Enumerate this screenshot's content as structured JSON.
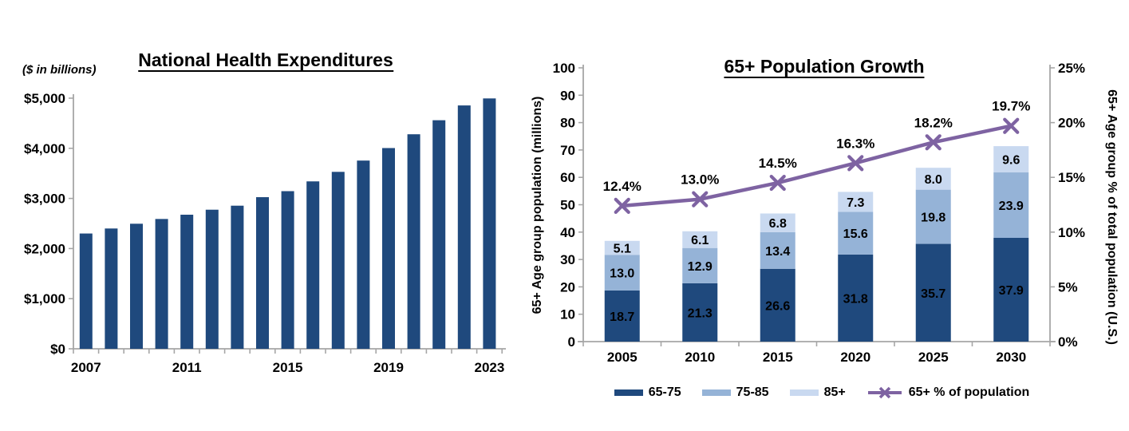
{
  "chart_data": [
    {
      "id": "national-health-expenditures",
      "type": "bar",
      "title": "National Health Expenditures",
      "units_note": "($ in billions)",
      "categories": [
        "2007",
        "2008",
        "2009",
        "2010",
        "2011",
        "2012",
        "2013",
        "2014",
        "2015",
        "2016",
        "2017",
        "2018",
        "2019",
        "2020",
        "2021",
        "2022",
        "2023"
      ],
      "values": [
        2300,
        2400,
        2495,
        2590,
        2675,
        2775,
        2855,
        3025,
        3145,
        3340,
        3530,
        3755,
        4005,
        4280,
        4560,
        4855,
        4995
      ],
      "x_axis_shown_labels": [
        {
          "i": 0,
          "t": "2007"
        },
        {
          "i": 4,
          "t": "2011"
        },
        {
          "i": 8,
          "t": "2015"
        },
        {
          "i": 12,
          "t": "2019"
        },
        {
          "i": 16,
          "t": "2023"
        }
      ],
      "y_axis": {
        "min": 0,
        "max": 5000,
        "step": 1000,
        "tick_labels": [
          "$0",
          "$1,000",
          "$2,000",
          "$3,000",
          "$4,000",
          "$5,000"
        ]
      },
      "bar_color": "#1F497D",
      "axis_color": "#A6A6A6",
      "grid": false,
      "legend": "none"
    },
    {
      "id": "population-growth-65plus",
      "type": "stacked-bar-line-combo",
      "title": "65+ Population Growth",
      "categories": [
        "2005",
        "2010",
        "2015",
        "2020",
        "2025",
        "2030"
      ],
      "series": [
        {
          "name": "65-75",
          "color": "#1F497D",
          "label_color": "#FFFFFF",
          "values": [
            18.7,
            21.3,
            26.6,
            31.8,
            35.7,
            37.9
          ],
          "labels": [
            "18.7",
            "21.3",
            "26.6",
            "31.8",
            "35.7",
            "37.9"
          ]
        },
        {
          "name": "75-85",
          "color": "#95B3D7",
          "label_color": "#FFFFFF",
          "values": [
            13.0,
            12.9,
            13.4,
            15.6,
            19.8,
            23.9
          ],
          "labels": [
            "13.0",
            "12.9",
            "13.4",
            "15.6",
            "19.8",
            "23.9"
          ]
        },
        {
          "name": "85+",
          "color": "#C9D9F0",
          "label_color": "#000000",
          "values": [
            5.1,
            6.1,
            6.8,
            7.3,
            8.0,
            9.6
          ],
          "labels": [
            "5.1",
            "6.1",
            "6.8",
            "7.3",
            "8.0",
            "9.6"
          ]
        }
      ],
      "line": {
        "name": "65+ % of population",
        "color": "#7E63A2",
        "marker": "x",
        "axis": "right",
        "values": [
          12.4,
          13.0,
          14.5,
          16.3,
          18.2,
          19.7
        ],
        "labels": [
          "12.4%",
          "13.0%",
          "14.5%",
          "16.3%",
          "18.2%",
          "19.7%"
        ]
      },
      "left_axis": {
        "label": "65+ Age group population (millions)",
        "min": 0,
        "max": 100,
        "step": 10
      },
      "right_axis": {
        "label": "65+ Age group % of total population (U.S.)",
        "min": 0,
        "max": 25,
        "step": 5,
        "suffix": "%"
      },
      "axis_color": "#A6A6A6",
      "legend_position": "bottom",
      "grid": false
    }
  ]
}
